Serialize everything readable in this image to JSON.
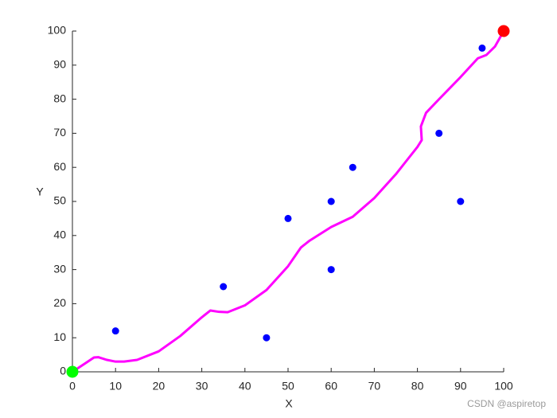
{
  "chart_data": {
    "type": "scatter",
    "xlabel": "X",
    "ylabel": "Y",
    "xlim": [
      0,
      100
    ],
    "ylim": [
      0,
      100
    ],
    "xticks": [
      0,
      10,
      20,
      30,
      40,
      50,
      60,
      70,
      80,
      90,
      100
    ],
    "yticks": [
      0,
      10,
      20,
      30,
      40,
      50,
      60,
      70,
      80,
      90,
      100
    ],
    "series": [
      {
        "mode": "line",
        "color": "#ff00ff",
        "x": [
          0,
          3,
          5,
          6,
          8,
          10,
          12,
          15,
          20,
          25,
          30,
          32,
          34,
          36,
          40,
          45,
          50,
          53,
          55,
          60,
          65,
          70,
          75,
          80,
          81,
          80.8,
          82,
          85,
          90,
          94,
          96,
          98,
          100
        ],
        "values": [
          0,
          2.5,
          4.2,
          4.3,
          3.5,
          3,
          3,
          3.5,
          6,
          10.5,
          16,
          18,
          17.6,
          17.5,
          19.5,
          24,
          31,
          36.5,
          38.5,
          42.5,
          45.5,
          51,
          58,
          66,
          68,
          72,
          76,
          80,
          86.5,
          92,
          93,
          95.5,
          100
        ]
      },
      {
        "mode": "markers",
        "color": "#0000ff",
        "size": 4.5,
        "x": [
          10,
          35,
          45,
          50,
          60,
          60,
          65,
          85,
          90,
          95
        ],
        "values": [
          12,
          25,
          10,
          45,
          30,
          50,
          60,
          70,
          50,
          95
        ]
      },
      {
        "mode": "markers",
        "color": "#00ff00",
        "size": 7.5,
        "x": [
          0
        ],
        "values": [
          0
        ]
      },
      {
        "mode": "markers",
        "color": "#ff0000",
        "size": 7.5,
        "x": [
          100
        ],
        "values": [
          100
        ]
      }
    ],
    "watermark": "CSDN @aspiretop"
  }
}
